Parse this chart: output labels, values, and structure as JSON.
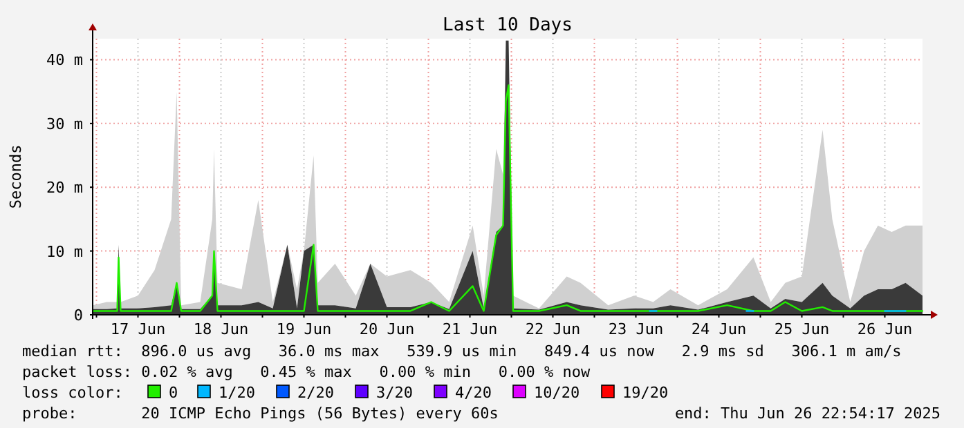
{
  "chart_data": {
    "type": "line",
    "title": "Last 10 Days",
    "ylabel": "Seconds",
    "legend_title": "loss color:",
    "legend": "bottom",
    "grid": true,
    "stacked": true,
    "marker": "none",
    "line_style": "solid",
    "xlim": [
      "2025-06-16T22:54",
      "2025-06-26T22:54"
    ],
    "xticks": [
      {
        "value": "2025-06-17",
        "label": null
      },
      {
        "value": "2025-06-17T12:00",
        "label": "17 Jun"
      },
      {
        "value": "2025-06-18",
        "label": null
      },
      {
        "value": "2025-06-18T12:00",
        "label": "18 Jun"
      },
      {
        "value": "2025-06-19",
        "label": null
      },
      {
        "value": "2025-06-19T12:00",
        "label": "19 Jun"
      },
      {
        "value": "2025-06-20",
        "label": null
      },
      {
        "value": "2025-06-20T12:00",
        "label": "20 Jun"
      },
      {
        "value": "2025-06-21",
        "label": null
      },
      {
        "value": "2025-06-21T12:00",
        "label": "21 Jun"
      },
      {
        "value": "2025-06-22",
        "label": null
      },
      {
        "value": "2025-06-22T12:00",
        "label": "22 Jun"
      },
      {
        "value": "2025-06-23",
        "label": null
      },
      {
        "value": "2025-06-23T12:00",
        "label": "23 Jun"
      },
      {
        "value": "2025-06-24",
        "label": null
      },
      {
        "value": "2025-06-24T12:00",
        "label": "24 Jun"
      },
      {
        "value": "2025-06-25",
        "label": null
      },
      {
        "value": "2025-06-25T12:00",
        "label": "25 Jun"
      },
      {
        "value": "2025-06-26",
        "label": null
      },
      {
        "value": "2025-06-26T12:00",
        "label": "26 Jun"
      }
    ],
    "ylim": [
      0,
      43.3
    ],
    "yticks": [
      {
        "value": 0,
        "label": "0"
      },
      {
        "value": 10,
        "label": "10 m"
      },
      {
        "value": 20,
        "label": "20 m"
      },
      {
        "value": 30,
        "label": "30 m"
      },
      {
        "value": 40,
        "label": "40 m"
      }
    ],
    "x": [
      "2025-06-16T22:54",
      "2025-06-17T03:00",
      "2025-06-17T06:00",
      "2025-06-17T06:24",
      "2025-06-17T07:00",
      "2025-06-17T12:00",
      "2025-06-17T16:48",
      "2025-06-17T21:36",
      "2025-06-17T23:12",
      "2025-06-18T00:30",
      "2025-06-18T06:00",
      "2025-06-18T09:30",
      "2025-06-18T10:00",
      "2025-06-18T11:00",
      "2025-06-18T18:00",
      "2025-06-18T22:48",
      "2025-06-19T03:00",
      "2025-06-19T07:12",
      "2025-06-19T10:00",
      "2025-06-19T12:00",
      "2025-06-19T14:48",
      "2025-06-19T16:00",
      "2025-06-19T21:00",
      "2025-06-20T03:00",
      "2025-06-20T07:12",
      "2025-06-20T12:00",
      "2025-06-20T18:48",
      "2025-06-21T00:48",
      "2025-06-21T06:00",
      "2025-06-21T12:48",
      "2025-06-21T16:00",
      "2025-06-21T19:36",
      "2025-06-21T21:36",
      "2025-06-21T22:24",
      "2025-06-21T23:12",
      "2025-06-22T00:30",
      "2025-06-22T08:00",
      "2025-06-22T16:00",
      "2025-06-22T20:00",
      "2025-06-23T04:00",
      "2025-06-23T11:30",
      "2025-06-23T17:00",
      "2025-06-23T22:00",
      "2025-06-24T06:00",
      "2025-06-24T14:24",
      "2025-06-24T22:00",
      "2025-06-25T03:00",
      "2025-06-25T07:12",
      "2025-06-25T12:00",
      "2025-06-25T18:00",
      "2025-06-25T20:48",
      "2025-06-26T02:00",
      "2025-06-26T06:00",
      "2025-06-26T10:00",
      "2025-06-26T14:00",
      "2025-06-26T18:00",
      "2025-06-26T22:54"
    ],
    "series": [
      {
        "type": "area",
        "color": "#3a3a3a",
        "values": [
          0.9,
          0.9,
          1,
          11,
          1,
          1,
          1.2,
          1.5,
          5,
          0.9,
          0.9,
          3,
          10,
          1.5,
          1.5,
          2,
          1,
          11,
          1,
          10,
          11,
          1.5,
          1.5,
          1,
          8,
          1.2,
          1.2,
          2,
          0.9,
          10,
          1,
          13,
          14,
          43,
          43,
          1,
          0.8,
          2,
          1.5,
          0.8,
          1,
          1,
          1.5,
          0.8,
          2,
          3,
          1,
          2.5,
          2,
          5,
          3,
          1,
          3,
          4,
          4,
          5,
          3
        ]
      },
      {
        "type": "area",
        "color": "#d0d0d0",
        "values": [
          0.6,
          1.1,
          1,
          0,
          1,
          2,
          5.8,
          13.5,
          30,
          0.6,
          1.1,
          12,
          16,
          3.5,
          2.5,
          16,
          1,
          0,
          3,
          0,
          14,
          3.5,
          6.5,
          2,
          0,
          4.8,
          5.8,
          3,
          1.1,
          4,
          2,
          13,
          8,
          0,
          0,
          2,
          0.2,
          4,
          3.5,
          0.7,
          2,
          1,
          2.5,
          0.7,
          2,
          6,
          1,
          2.5,
          4,
          24,
          12,
          1,
          7,
          10,
          9,
          9,
          11
        ]
      },
      {
        "name": "0",
        "color": "#22ee00",
        "values": [
          0.6,
          0.6,
          0.6,
          9,
          0.6,
          0.6,
          0.6,
          0.6,
          5,
          0.6,
          0.6,
          3,
          10,
          0.6,
          0.6,
          0.6,
          0.6,
          0.6,
          0.6,
          0.6,
          11,
          0.6,
          0.6,
          0.6,
          0.6,
          0.6,
          0.6,
          2,
          0.6,
          4.5,
          0.6,
          12.5,
          14,
          33.5,
          36,
          0.6,
          0.6,
          1.5,
          0.6,
          0.6,
          0.6,
          0.6,
          0.6,
          0.6,
          1.5,
          0.6,
          0.6,
          2,
          0.6,
          1.2,
          0.6,
          0.6,
          0.6,
          0.6,
          0.6,
          0.6,
          0.6
        ]
      },
      {
        "name": "1/20",
        "color": "#00b8ff",
        "x": [
          "2025-06-23T16:00",
          "2025-06-23T18:00",
          "2025-06-24T00:00",
          "2025-06-24T20:00",
          "2025-06-24T22:00",
          "2025-06-25T12:00",
          "2025-06-26T12:00",
          "2025-06-26T18:00"
        ],
        "values": [
          0.6,
          0.6,
          null,
          0.6,
          0.6,
          null,
          0.6,
          0.6
        ]
      },
      {
        "name": "2/20",
        "color": "#0059ff",
        "values": [
          null,
          null,
          null,
          null,
          null,
          null,
          null,
          null,
          null,
          null,
          null,
          null,
          null,
          null,
          null,
          null,
          null,
          null,
          null,
          null,
          null,
          null,
          null,
          null,
          null,
          null,
          null,
          null,
          null,
          null,
          null,
          null,
          null,
          null,
          null,
          null,
          null,
          null,
          null,
          null,
          null,
          null,
          null,
          null,
          null,
          null,
          null,
          null,
          null,
          null,
          null,
          null,
          null,
          null,
          null,
          null,
          null
        ]
      },
      {
        "name": "3/20",
        "color": "#5e00ff",
        "values": [
          null,
          null,
          null,
          null,
          null,
          null,
          null,
          null,
          null,
          null,
          null,
          null,
          null,
          null,
          null,
          null,
          null,
          null,
          null,
          null,
          null,
          null,
          null,
          null,
          null,
          null,
          null,
          null,
          null,
          null,
          null,
          null,
          null,
          null,
          null,
          null,
          null,
          null,
          null,
          null,
          null,
          null,
          null,
          null,
          null,
          null,
          null,
          null,
          null,
          null,
          null,
          null,
          null,
          null,
          null,
          null,
          null
        ]
      },
      {
        "name": "4/20",
        "color": "#7e00ff",
        "values": [
          null,
          null,
          null,
          null,
          null,
          null,
          null,
          null,
          null,
          null,
          null,
          null,
          null,
          null,
          null,
          null,
          null,
          null,
          null,
          null,
          null,
          null,
          null,
          null,
          null,
          null,
          null,
          null,
          null,
          null,
          null,
          null,
          null,
          null,
          null,
          null,
          null,
          null,
          null,
          null,
          null,
          null,
          null,
          null,
          null,
          null,
          null,
          null,
          null,
          null,
          null,
          null,
          null,
          null,
          null,
          null,
          null
        ]
      },
      {
        "name": "10/20",
        "color": "#dd00ff",
        "values": [
          null,
          null,
          null,
          null,
          null,
          null,
          null,
          null,
          null,
          null,
          null,
          null,
          null,
          null,
          null,
          null,
          null,
          null,
          null,
          null,
          null,
          null,
          null,
          null,
          null,
          null,
          null,
          null,
          null,
          null,
          null,
          null,
          null,
          null,
          null,
          null,
          null,
          null,
          null,
          null,
          null,
          null,
          null,
          null,
          null,
          null,
          null,
          null,
          null,
          null,
          null,
          null,
          null,
          null,
          null,
          null,
          null
        ]
      },
      {
        "name": "19/20",
        "color": "#ff0000",
        "values": [
          null,
          null,
          null,
          null,
          null,
          null,
          null,
          null,
          null,
          null,
          null,
          null,
          null,
          null,
          null,
          null,
          null,
          null,
          null,
          null,
          null,
          null,
          null,
          null,
          null,
          null,
          null,
          null,
          null,
          null,
          null,
          null,
          null,
          null,
          null,
          null,
          null,
          null,
          null,
          null,
          null,
          null,
          null,
          null,
          null,
          null,
          null,
          null,
          null,
          null,
          null,
          null,
          null,
          null,
          null,
          null,
          null
        ]
      }
    ],
    "annotations": [
      "median rtt:  896.0 us avg   36.0 ms max   539.9 us min   849.4 us now   2.9 ms sd   306.1 m am/s",
      "packet loss: 0.02 % avg   0.45 % max   0.00 % min   0.00 % now",
      "probe:       20 ICMP Echo Pings (56 Bytes) every 60s",
      "end: Thu Jun 26 22:54:17 2025"
    ]
  }
}
